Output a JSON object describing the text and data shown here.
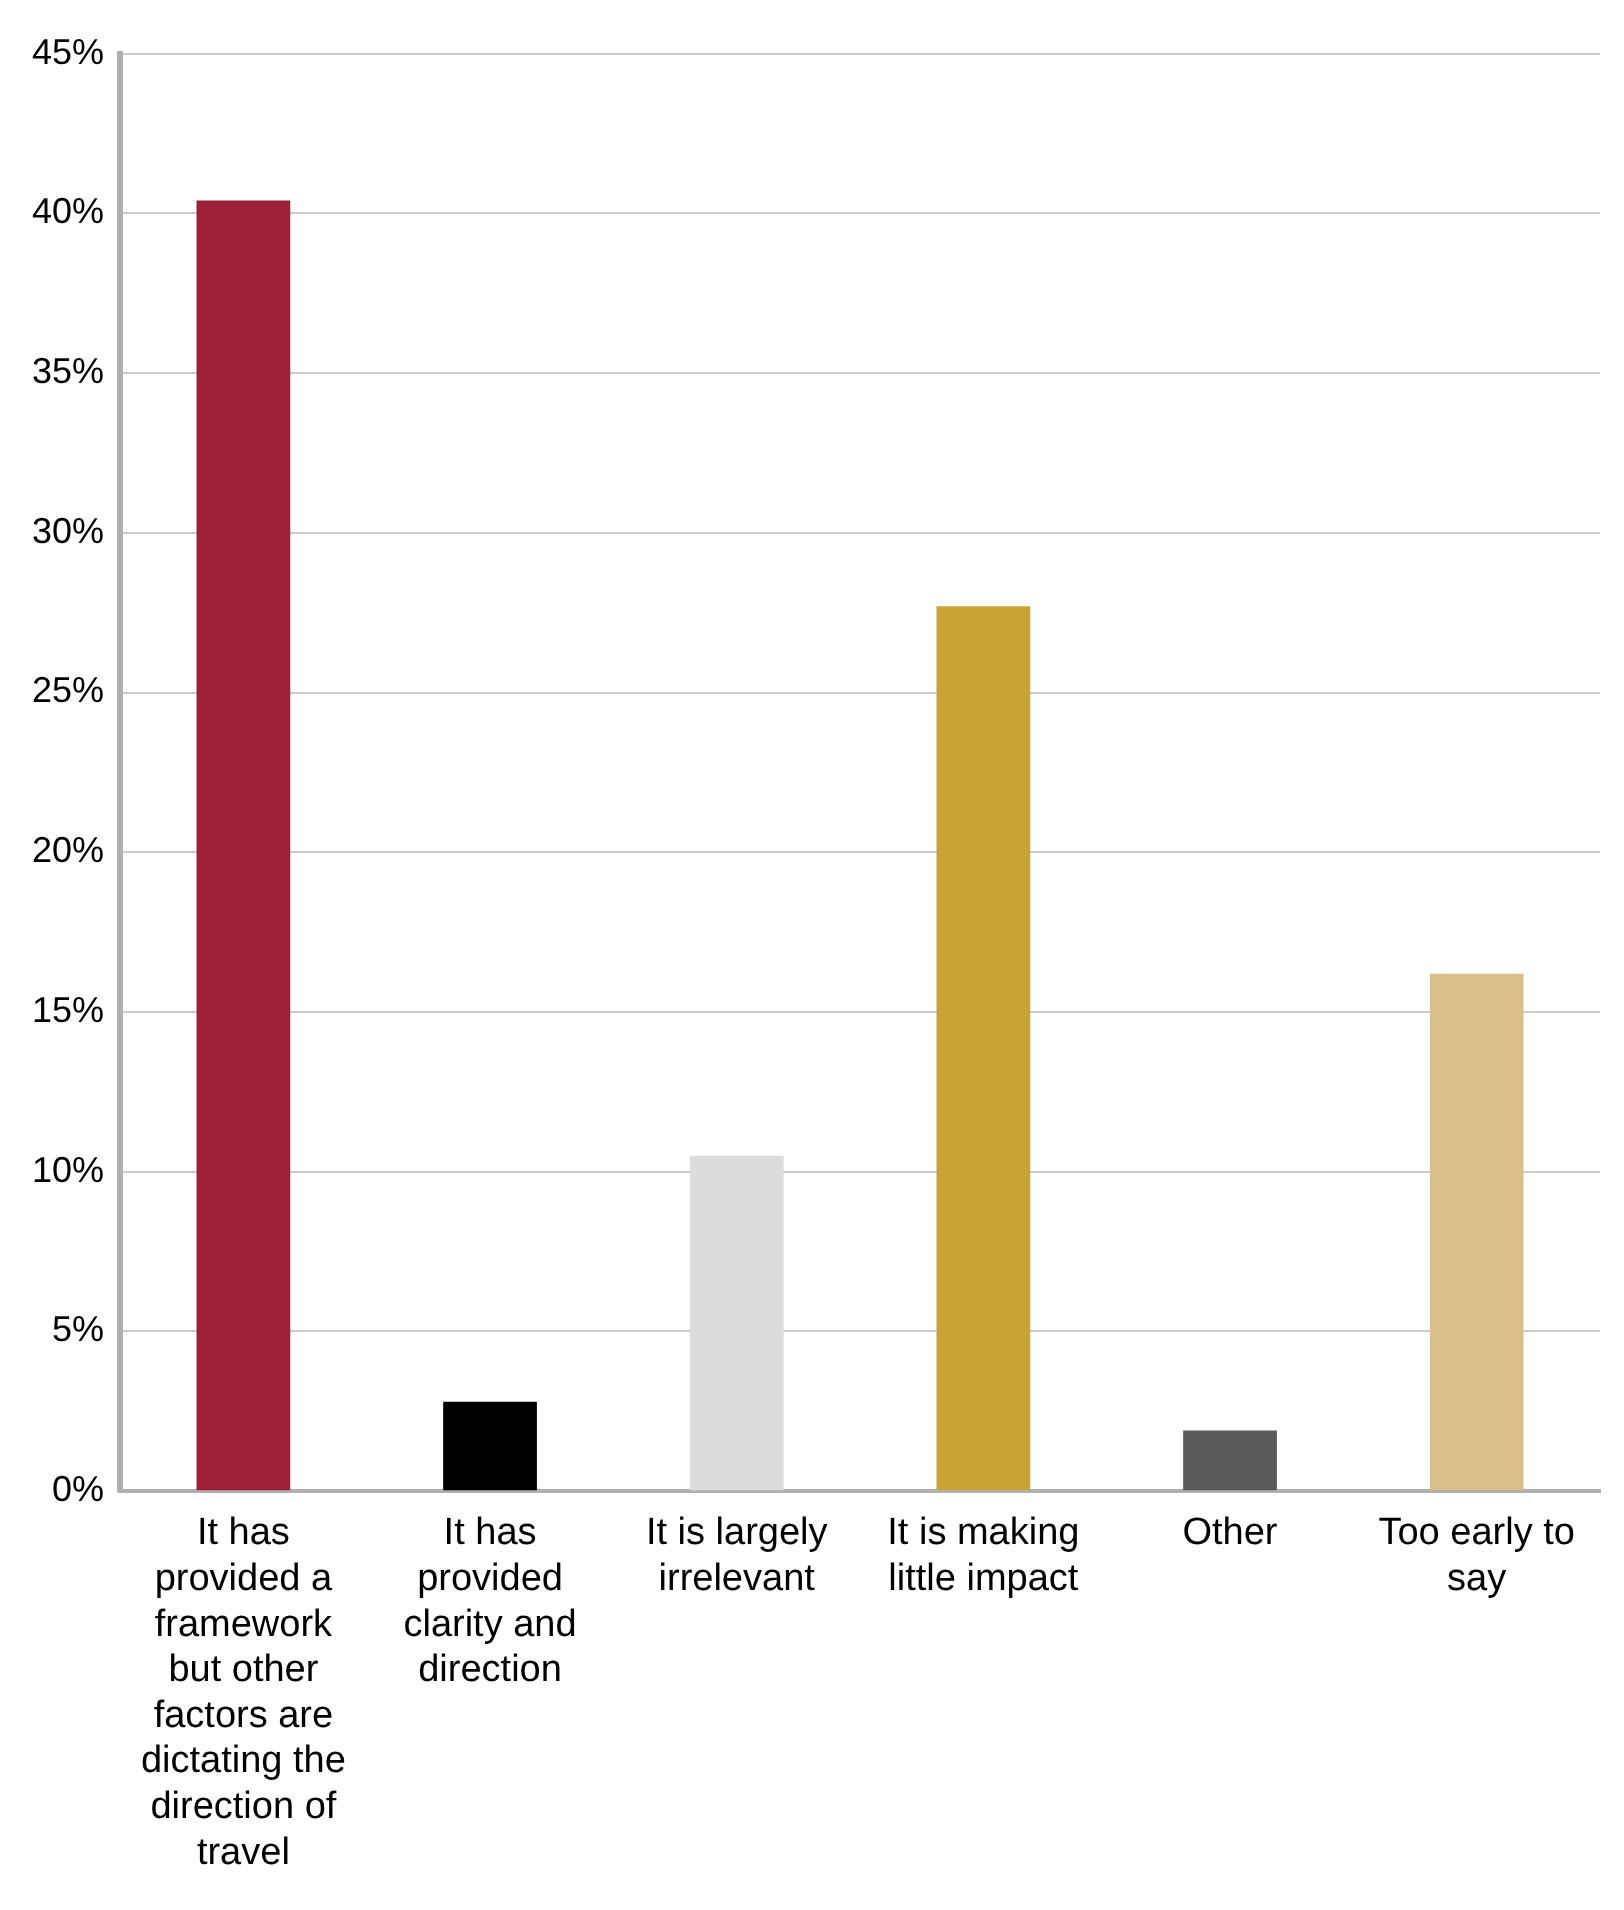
{
  "chart_data": {
    "type": "bar",
    "categories": [
      "It has provided a framework but other factors are dictating the direction of travel",
      "It has provided clarity and direction",
      "It is largely irrelevant",
      "It is making little impact",
      "Other",
      "Too early to say"
    ],
    "values": [
      40.4,
      2.8,
      10.5,
      27.7,
      1.9,
      16.2
    ],
    "colors": [
      "#9b2038",
      "#000000",
      "#dcdcdc",
      "#c9a434",
      "#5a5a5a",
      "#dbbf88"
    ],
    "ylim": [
      0,
      45
    ],
    "yticks": [
      {
        "value": 0,
        "label": "0%"
      },
      {
        "value": 5,
        "label": "5%"
      },
      {
        "value": 10,
        "label": "10%"
      },
      {
        "value": 15,
        "label": "15%"
      },
      {
        "value": 20,
        "label": "20%"
      },
      {
        "value": 25,
        "label": "25%"
      },
      {
        "value": 30,
        "label": "30%"
      },
      {
        "value": 35,
        "label": "35%"
      },
      {
        "value": 40,
        "label": "40%"
      },
      {
        "value": 45,
        "label": "45%"
      }
    ],
    "grid": "y",
    "legend": false
  }
}
